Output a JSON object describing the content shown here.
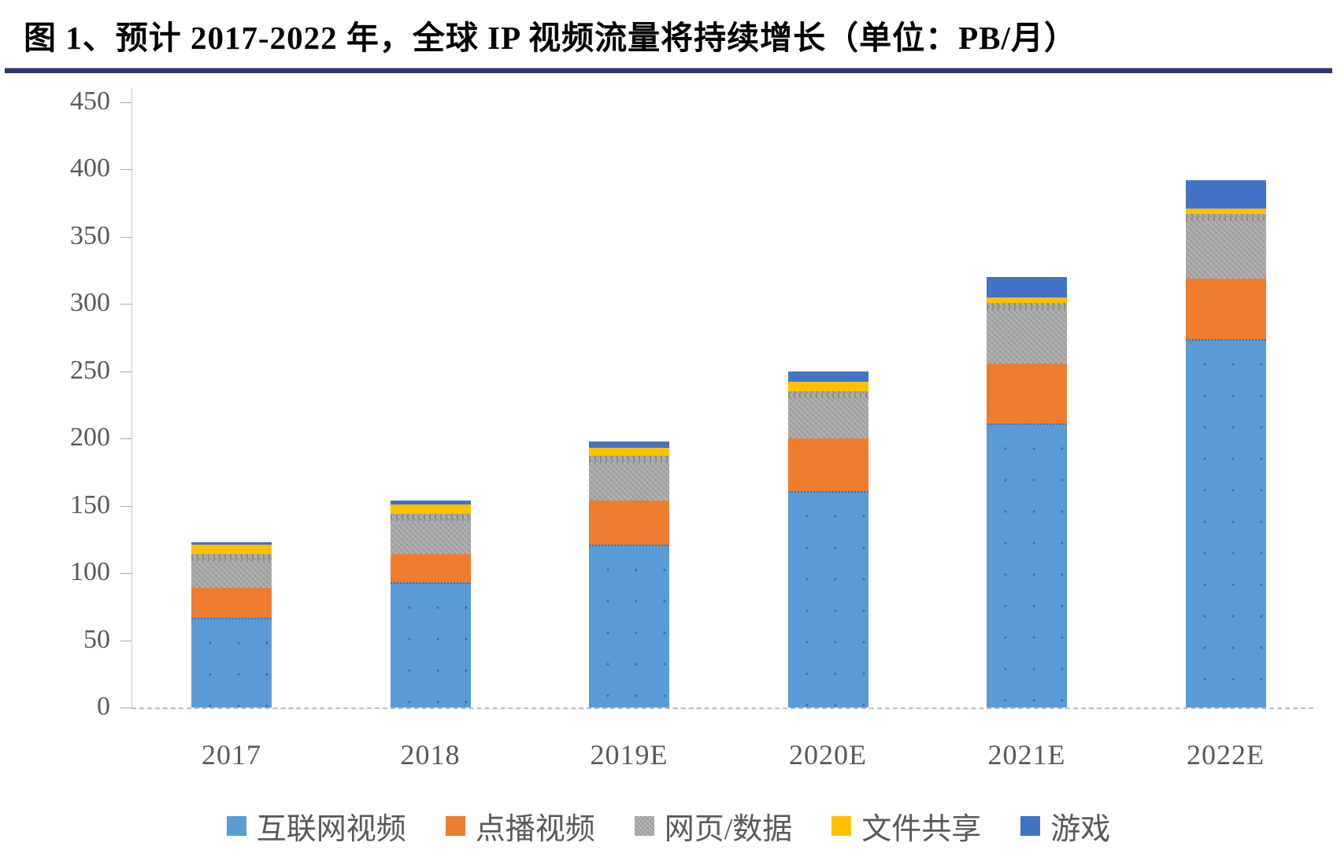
{
  "title": "图 1、预计 2017-2022 年，全球 IP 视频流量将持续增长（单位：PB/月）",
  "chart_data": {
    "type": "bar",
    "stacked": true,
    "title": "预计 2017-2022 年，全球 IP 视频流量将持续增长",
    "unit": "PB/月",
    "categories": [
      "2017",
      "2018",
      "2019E",
      "2020E",
      "2021E",
      "2022E"
    ],
    "series": [
      {
        "name": "互联网视频",
        "color": "#5B9BD5",
        "values": [
          67,
          93,
          121,
          161,
          211,
          274
        ]
      },
      {
        "name": "点播视频",
        "color": "#ED7D31",
        "values": [
          22,
          21,
          33,
          39,
          45,
          45
        ]
      },
      {
        "name": "网页/数据",
        "color": "#A5A5A5",
        "values": [
          25,
          30,
          33,
          35,
          45,
          48
        ]
      },
      {
        "name": "文件共享",
        "color": "#FFC000",
        "values": [
          7,
          7,
          6,
          7,
          4,
          4
        ]
      },
      {
        "name": "游戏",
        "color": "#4472C4",
        "values": [
          2,
          3,
          5,
          8,
          15,
          21
        ]
      }
    ],
    "totals": [
      123,
      154,
      198,
      250,
      320,
      392
    ],
    "ylim": [
      0,
      450
    ],
    "yticks": [
      0,
      50,
      100,
      150,
      200,
      250,
      300,
      350,
      400,
      450
    ],
    "grid": false,
    "legend_position": "bottom",
    "accent_rule_color": "#2F3566",
    "axis_text_color": "#595959"
  }
}
